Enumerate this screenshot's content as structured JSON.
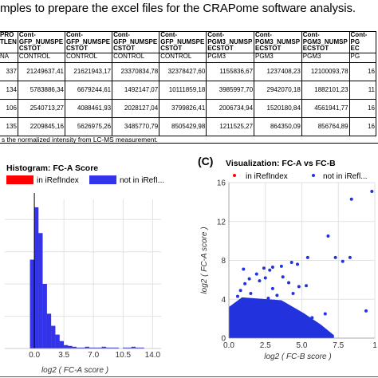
{
  "caption": "mples to prepare the excel files for the CRAPome software analysis.",
  "table": {
    "header": [
      [
        "PRO",
        "TLEN"
      ],
      [
        "Cont-",
        "GFP_NUMSPE",
        "CSTOT"
      ],
      [
        "Cont-",
        "GFP_NUMSPE",
        "CSTOT"
      ],
      [
        "Cont-",
        "GFP_NUMSPE",
        "CSTOT"
      ],
      [
        "Cont-",
        "GFP_NUMSPE",
        "CSTOT"
      ],
      [
        "Cont-",
        "PGM3_NUMSP",
        "ECSTOT"
      ],
      [
        "Cont-",
        "PGM3_NUMSP",
        "ECSTOT"
      ],
      [
        "Cont-",
        "PGM3_NUMSP",
        "ECSTOT"
      ],
      [
        "Cont-",
        "PG",
        "EC"
      ]
    ],
    "subheader": [
      "NA",
      "CONTROL",
      "CONTROL",
      "CONTROL",
      "CONTROL",
      "PGM3",
      "PGM3",
      "PGM3",
      "PG"
    ],
    "rows": [
      [
        "337",
        "21249637,41",
        "21621943,17",
        "23370834,78",
        "32378427,60",
        "1155836,67",
        "1237408,23",
        "12100093,78",
        "16"
      ],
      [
        "134",
        "5783886,34",
        "6679244,61",
        "1492147,07",
        "10111859,18",
        "3985997,70",
        "2942070,18",
        "1882101,23",
        "11"
      ],
      [
        "106",
        "2540713,27",
        "4088461,93",
        "2028127,04",
        "3799826,41",
        "2006734,94",
        "1520180,84",
        "4561941,77",
        "16"
      ],
      [
        "135",
        "2209845,16",
        "5626975,26",
        "3485770,79",
        "8505429,98",
        "1211525,27",
        "864350,09",
        "856764,89",
        "16"
      ]
    ],
    "note": "s the normalized intensity from LC-MS measurement."
  },
  "panel_c_label": "(C)",
  "histogram": {
    "chart_data": {
      "type": "bar",
      "title": "Histogram: FC-A Score",
      "xlabel": "log2 ( FC-A score )",
      "ylabel": "",
      "xlim": [
        -3.5,
        15
      ],
      "xticks": [
        "0.0",
        "3.5",
        "7.0",
        "10.5",
        "14.0"
      ],
      "legend": [
        "in iRefIndex",
        "not in iRefI..."
      ],
      "legend_colors": [
        "#ff0000",
        "#3333ee"
      ],
      "bin_width": 0.5,
      "bin_start": -0.5,
      "values": [
        110,
        175,
        143,
        80,
        43,
        28,
        17,
        9,
        4,
        3,
        2,
        1,
        1,
        2,
        1,
        1,
        1,
        2,
        1,
        1,
        1,
        0,
        1,
        1,
        2,
        1,
        1
      ],
      "ymax": 185
    }
  },
  "scatter": {
    "chart_data": {
      "type": "scatter",
      "title": "Visualization: FC-A vs FC-B",
      "xlabel": "log2 ( FC-B score )",
      "ylabel": "log2 ( FC-A score )",
      "xlim": [
        0,
        10
      ],
      "ylim": [
        0,
        16
      ],
      "xticks": [
        "0.0",
        "2.5",
        "5.0",
        "7.5",
        "1"
      ],
      "yticks": [
        "0",
        "4",
        "8",
        "12",
        "16"
      ],
      "legend": [
        "in iRefIndex",
        "not in iRefl..."
      ],
      "legend_colors": [
        "#ff0000",
        "#2233dd"
      ],
      "points": [
        [
          9.8,
          15.1
        ],
        [
          8.4,
          14.3
        ],
        [
          6.8,
          10.5
        ],
        [
          7.3,
          8.3
        ],
        [
          8.3,
          8.3
        ],
        [
          7.8,
          7.9
        ],
        [
          5.4,
          8.3
        ],
        [
          4.7,
          7.6
        ],
        [
          4.3,
          7.8
        ],
        [
          3.6,
          7.4
        ],
        [
          3.0,
          7.3
        ],
        [
          2.8,
          7.0
        ],
        [
          2.4,
          7.2
        ],
        [
          1.9,
          6.6
        ],
        [
          1.4,
          6.1
        ],
        [
          1.1,
          5.6
        ],
        [
          0.8,
          4.9
        ],
        [
          0.6,
          4.3
        ],
        [
          3.7,
          6.3
        ],
        [
          4.1,
          5.7
        ],
        [
          4.8,
          5.3
        ],
        [
          5.3,
          5.4
        ],
        [
          1.8,
          3.7
        ],
        [
          2.2,
          3.8
        ],
        [
          2.6,
          3.3
        ],
        [
          3.1,
          3.8
        ],
        [
          3.5,
          3.4
        ],
        [
          4.0,
          3.1
        ],
        [
          4.6,
          2.2
        ],
        [
          5.7,
          2.1
        ],
        [
          6.6,
          2.5
        ],
        [
          9.4,
          2.8
        ],
        [
          3.0,
          5.1
        ],
        [
          2.1,
          5.9
        ],
        [
          1.5,
          4.6
        ],
        [
          0.9,
          3.2
        ],
        [
          1.2,
          2.4
        ],
        [
          0.5,
          1.8
        ],
        [
          0.3,
          1.0
        ],
        [
          0.2,
          0.5
        ],
        [
          3.3,
          4.4
        ],
        [
          4.4,
          4.6
        ],
        [
          2.7,
          4.1
        ],
        [
          1.0,
          7.1
        ],
        [
          2.5,
          6.2
        ]
      ]
    }
  }
}
